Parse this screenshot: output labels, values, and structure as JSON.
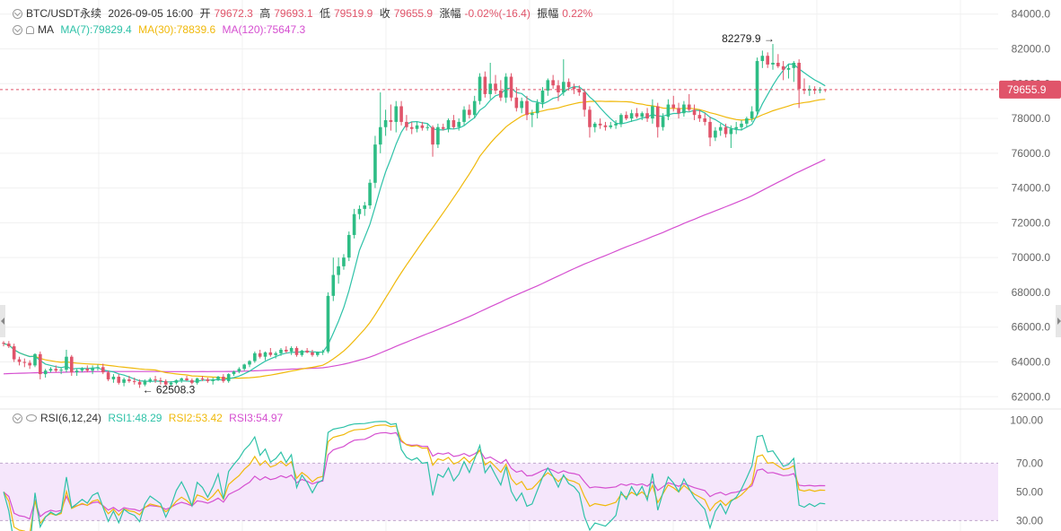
{
  "header": {
    "symbol": "BTC/USDT永续",
    "datetime": "2026-09-05 16:00",
    "open_label": "开",
    "open": "79672.3",
    "high_label": "高",
    "high": "79693.1",
    "low_label": "低",
    "low": "79519.9",
    "close_label": "收",
    "close": "79655.9",
    "change_label": "涨幅",
    "change": "-0.02%(-16.4)",
    "amplitude_label": "振幅",
    "amplitude": "0.22%"
  },
  "ma_legend": {
    "label": "MA",
    "items": [
      {
        "text": "MA(7):79829.4",
        "color": "#2ec2a8"
      },
      {
        "text": "MA(30):78839.6",
        "color": "#f0b90b"
      },
      {
        "text": "MA(120):75647.3",
        "color": "#d54fd0"
      }
    ]
  },
  "rsi_legend": {
    "label": "RSI(6,12,24)",
    "items": [
      {
        "text": "RSI1:48.29",
        "color": "#2ec2a8"
      },
      {
        "text": "RSI2:53.42",
        "color": "#f0b90b"
      },
      {
        "text": "RSI3:54.97",
        "color": "#d54fd0"
      }
    ]
  },
  "colors": {
    "up": "#2ebd85",
    "down": "#e0546a",
    "grid": "#f0f0f0",
    "axis_text": "#666666"
  },
  "chart_data": [
    {
      "type": "candlestick",
      "name": "BTC/USDT永续",
      "ylim": [
        61500,
        84500
      ],
      "yticks": [
        62000,
        64000,
        66000,
        68000,
        70000,
        72000,
        74000,
        76000,
        78000,
        80000,
        82000,
        84000
      ],
      "ytick_labels": [
        "62000.0",
        "64000.0",
        "66000.0",
        "68000.0",
        "70000.0",
        "72000.0",
        "74000.0",
        "76000.0",
        "78000.0",
        "80000.0",
        "82000.0",
        "84000.0"
      ],
      "current_price": 79655.9,
      "current_price_label": "79655.9",
      "annotations": [
        {
          "text": "82279.9 →",
          "value": 82279.9,
          "index": 148
        },
        {
          "text": "← 62508.3",
          "value": 62508.3,
          "index": 26
        }
      ],
      "candles": [
        [
          65100,
          65200,
          64900,
          65050
        ],
        [
          65050,
          65200,
          64800,
          64900
        ],
        [
          64900,
          65050,
          64000,
          64150
        ],
        [
          64150,
          64300,
          63800,
          64000
        ],
        [
          64000,
          64200,
          63700,
          63950
        ],
        [
          63950,
          64100,
          63600,
          63800
        ],
        [
          63800,
          64500,
          63700,
          64450
        ],
        [
          64450,
          64600,
          63000,
          63300
        ],
        [
          63300,
          63600,
          63100,
          63500
        ],
        [
          63500,
          63700,
          63400,
          63600
        ],
        [
          63600,
          63800,
          63400,
          63500
        ],
        [
          63500,
          63700,
          63300,
          63550
        ],
        [
          63550,
          64700,
          63400,
          64300
        ],
        [
          64300,
          64400,
          63200,
          63400
        ],
        [
          63400,
          63600,
          63200,
          63500
        ],
        [
          63500,
          63700,
          63400,
          63600
        ],
        [
          63600,
          63800,
          63400,
          63500
        ],
        [
          63500,
          63800,
          63300,
          63650
        ],
        [
          63650,
          63850,
          63500,
          63700
        ],
        [
          63700,
          63900,
          63300,
          63400
        ],
        [
          63400,
          63500,
          62900,
          63000
        ],
        [
          63000,
          63300,
          62800,
          63150
        ],
        [
          63150,
          63300,
          62700,
          62800
        ],
        [
          62800,
          63100,
          62600,
          63000
        ],
        [
          63000,
          63200,
          62800,
          62900
        ],
        [
          62900,
          63100,
          62700,
          62850
        ],
        [
          62850,
          63000,
          62508,
          62700
        ],
        [
          62700,
          63000,
          62600,
          62900
        ],
        [
          62900,
          63100,
          62800,
          63000
        ],
        [
          63000,
          63200,
          62800,
          62950
        ],
        [
          62950,
          63100,
          62700,
          62900
        ],
        [
          62900,
          63000,
          62600,
          62700
        ],
        [
          62700,
          62900,
          62600,
          62800
        ],
        [
          62800,
          63000,
          62700,
          62950
        ],
        [
          62950,
          63100,
          62800,
          63050
        ],
        [
          63050,
          63200,
          62900,
          62950
        ],
        [
          62950,
          63050,
          62700,
          62800
        ],
        [
          62800,
          63100,
          62700,
          63050
        ],
        [
          63050,
          63200,
          62900,
          63000
        ],
        [
          63000,
          63100,
          62800,
          62900
        ],
        [
          62900,
          63100,
          62700,
          63000
        ],
        [
          63000,
          63200,
          62900,
          63150
        ],
        [
          63150,
          63300,
          62800,
          62900
        ],
        [
          62900,
          63350,
          62800,
          63300
        ],
        [
          63300,
          63500,
          63200,
          63450
        ],
        [
          63450,
          63700,
          63350,
          63600
        ],
        [
          63600,
          63900,
          63500,
          63850
        ],
        [
          63850,
          64100,
          63700,
          64050
        ],
        [
          64050,
          64600,
          63950,
          64500
        ],
        [
          64500,
          64700,
          64200,
          64300
        ],
        [
          64300,
          64600,
          64100,
          64550
        ],
        [
          64550,
          64800,
          64300,
          64400
        ],
        [
          64400,
          64600,
          64200,
          64500
        ],
        [
          64500,
          64800,
          64350,
          64700
        ],
        [
          64700,
          64900,
          64500,
          64600
        ],
        [
          64600,
          64900,
          64400,
          64800
        ],
        [
          64800,
          64900,
          64300,
          64400
        ],
        [
          64400,
          64700,
          64300,
          64650
        ],
        [
          64650,
          64800,
          64500,
          64550
        ],
        [
          64550,
          64700,
          64300,
          64400
        ],
        [
          64400,
          64600,
          64300,
          64550
        ],
        [
          64550,
          64700,
          64400,
          64600
        ],
        [
          64600,
          68000,
          64500,
          67800
        ],
        [
          67800,
          70000,
          67500,
          69000
        ],
        [
          69000,
          70000,
          68500,
          69500
        ],
        [
          69500,
          70200,
          69300,
          70000
        ],
        [
          70000,
          71500,
          69800,
          71300
        ],
        [
          71300,
          72800,
          71100,
          72500
        ],
        [
          72500,
          73000,
          72200,
          72800
        ],
        [
          72800,
          73200,
          72400,
          73000
        ],
        [
          73000,
          74500,
          72800,
          74300
        ],
        [
          74300,
          77000,
          74000,
          76500
        ],
        [
          76500,
          79500,
          76000,
          77500
        ],
        [
          77500,
          78500,
          77000,
          77900
        ],
        [
          77900,
          78800,
          77300,
          77800
        ],
        [
          77800,
          79000,
          77200,
          78700
        ],
        [
          78700,
          79000,
          77600,
          77800
        ],
        [
          77800,
          78200,
          77300,
          77500
        ],
        [
          77500,
          77800,
          77100,
          77400
        ],
        [
          77400,
          77800,
          77200,
          77600
        ],
        [
          77600,
          77800,
          77300,
          77450
        ],
        [
          77450,
          77700,
          77300,
          77500
        ],
        [
          77500,
          77600,
          75800,
          76500
        ],
        [
          76500,
          77700,
          76300,
          77500
        ],
        [
          77500,
          77700,
          77300,
          77400
        ],
        [
          77400,
          78000,
          77200,
          77900
        ],
        [
          77900,
          78200,
          77400,
          77500
        ],
        [
          77500,
          78000,
          77300,
          77800
        ],
        [
          77800,
          78700,
          77600,
          78500
        ],
        [
          78500,
          78800,
          78000,
          78200
        ],
        [
          78200,
          79300,
          78000,
          79000
        ],
        [
          79000,
          80600,
          78800,
          80400
        ],
        [
          80400,
          80700,
          79200,
          79400
        ],
        [
          79400,
          81200,
          79100,
          80000
        ],
        [
          80000,
          80500,
          79400,
          79600
        ],
        [
          79600,
          80200,
          79000,
          79200
        ],
        [
          79200,
          80600,
          78900,
          80400
        ],
        [
          80400,
          80600,
          79000,
          79200
        ],
        [
          79200,
          79800,
          78400,
          78600
        ],
        [
          78600,
          79200,
          78300,
          79000
        ],
        [
          79000,
          79300,
          77900,
          78200
        ],
        [
          78200,
          78500,
          77500,
          78300
        ],
        [
          78300,
          79100,
          78000,
          78900
        ],
        [
          78900,
          79800,
          78600,
          79600
        ],
        [
          79600,
          80300,
          79300,
          80200
        ],
        [
          80200,
          80500,
          79700,
          79900
        ],
        [
          79900,
          80200,
          79000,
          79500
        ],
        [
          79500,
          81400,
          79300,
          80100
        ],
        [
          80100,
          80300,
          79600,
          79800
        ],
        [
          79800,
          80000,
          79400,
          79700
        ],
        [
          79700,
          79900,
          79300,
          79500
        ],
        [
          79500,
          79700,
          78100,
          78500
        ],
        [
          78500,
          78700,
          76900,
          77500
        ],
        [
          77500,
          77800,
          77200,
          77700
        ],
        [
          77700,
          78000,
          77400,
          77600
        ],
        [
          77600,
          77800,
          77300,
          77500
        ],
        [
          77500,
          77800,
          77400,
          77600
        ],
        [
          77600,
          77900,
          77400,
          77700
        ],
        [
          77700,
          78300,
          77500,
          78200
        ],
        [
          78200,
          78400,
          77900,
          78000
        ],
        [
          78000,
          78500,
          77800,
          78300
        ],
        [
          78300,
          78600,
          78000,
          78100
        ],
        [
          78100,
          78400,
          77900,
          78300
        ],
        [
          78300,
          78600,
          77800,
          78000
        ],
        [
          78000,
          79100,
          77700,
          78700
        ],
        [
          78700,
          78900,
          76900,
          77500
        ],
        [
          77500,
          78300,
          77300,
          78100
        ],
        [
          78100,
          79100,
          77900,
          78800
        ],
        [
          78800,
          79300,
          78400,
          78600
        ],
        [
          78600,
          78900,
          78000,
          78300
        ],
        [
          78300,
          79000,
          78100,
          78800
        ],
        [
          78800,
          79400,
          78400,
          78500
        ],
        [
          78500,
          78800,
          77900,
          78200
        ],
        [
          78200,
          78500,
          77800,
          78000
        ],
        [
          78000,
          78300,
          77600,
          77800
        ],
        [
          77800,
          78100,
          76400,
          76900
        ],
        [
          76900,
          77500,
          76700,
          77300
        ],
        [
          77300,
          77700,
          77000,
          77500
        ],
        [
          77500,
          77700,
          76900,
          77100
        ],
        [
          77100,
          77600,
          76300,
          77400
        ],
        [
          77400,
          77800,
          77100,
          77500
        ],
        [
          77500,
          77900,
          77300,
          77700
        ],
        [
          77700,
          78100,
          77500,
          78000
        ],
        [
          78000,
          78700,
          77800,
          78400
        ],
        [
          78400,
          81500,
          78200,
          81300
        ],
        [
          81300,
          81900,
          80900,
          81600
        ],
        [
          81600,
          81800,
          80900,
          81100
        ],
        [
          81100,
          82279.9,
          80800,
          81200
        ],
        [
          81200,
          81700,
          80900,
          81000
        ],
        [
          81000,
          81300,
          80200,
          80800
        ],
        [
          80800,
          81100,
          80300,
          80900
        ],
        [
          80900,
          81300,
          80100,
          81200
        ],
        [
          81200,
          81400,
          78600,
          79700
        ],
        [
          79700,
          80300,
          79400,
          79600
        ],
        [
          79600,
          79900,
          79300,
          79700
        ],
        [
          79700,
          79850,
          79400,
          79600
        ],
        [
          79600,
          79800,
          79450,
          79672.3
        ],
        [
          79672.3,
          79693.1,
          79519.9,
          79655.9
        ]
      ]
    },
    {
      "type": "line",
      "name": "RSI(6,12,24)",
      "ylim": [
        24,
        104
      ],
      "yticks": [
        30,
        50,
        70,
        100
      ],
      "ytick_labels": [
        "30.00",
        "50.00",
        "70.00",
        "100.00"
      ],
      "band": [
        30,
        70
      ]
    }
  ]
}
